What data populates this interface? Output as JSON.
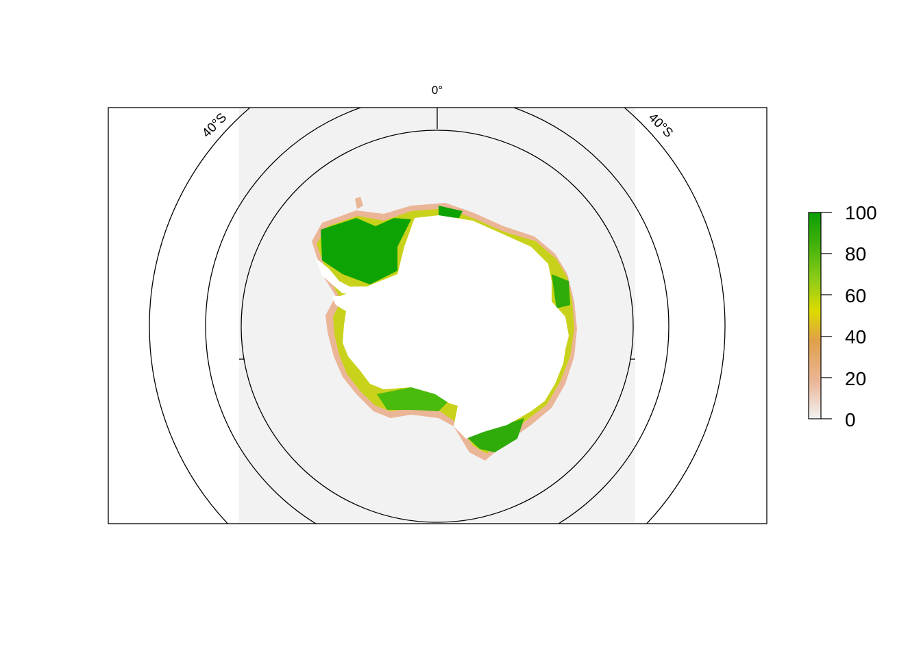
{
  "map": {
    "meridian_label": "0°",
    "parallel_label_left": "40°S",
    "parallel_label_right": "40°S",
    "colors": {
      "ocean_panel": "#f2f2f2",
      "land": "#ffffff",
      "graticule": "#000000",
      "frame": "#000000"
    }
  },
  "legend": {
    "ticks": [
      "100",
      "80",
      "60",
      "40",
      "20",
      "0"
    ],
    "range": [
      0,
      100
    ],
    "gradient": [
      "#f2f2f2",
      "#ebb698",
      "#e0a04a",
      "#dddb00",
      "#8ccc18",
      "#3fb10a",
      "#0c9e04"
    ]
  }
}
